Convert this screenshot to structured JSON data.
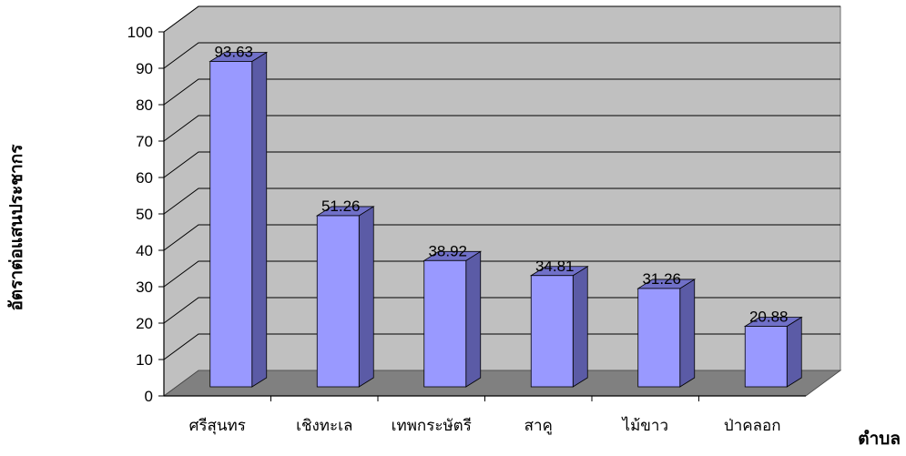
{
  "chart_data": {
    "type": "bar",
    "title": "",
    "xlabel": "ตำบล",
    "ylabel": "อัตราต่อแสนประชากร",
    "categories": [
      "ศรีสุนทร",
      "เชิงทะเล",
      "เทพกระษัตรี",
      "สาคู",
      "ไม้ขาว",
      "ป่าคลอก"
    ],
    "series": [
      {
        "values": [
          93.63,
          51.26,
          38.92,
          34.81,
          31.26,
          20.88
        ]
      }
    ],
    "ylim": [
      0,
      100
    ],
    "yticks": [
      0,
      10,
      20,
      30,
      40,
      50,
      60,
      70,
      80,
      90,
      100
    ],
    "grid": true,
    "style": "3d",
    "colors": {
      "bar_front": "#9999ff",
      "bar_side": "#5b5ba6",
      "bar_top": "#7070c8",
      "wall": "#c0c0c0",
      "floor": "#808080",
      "grid": "#000000"
    }
  }
}
